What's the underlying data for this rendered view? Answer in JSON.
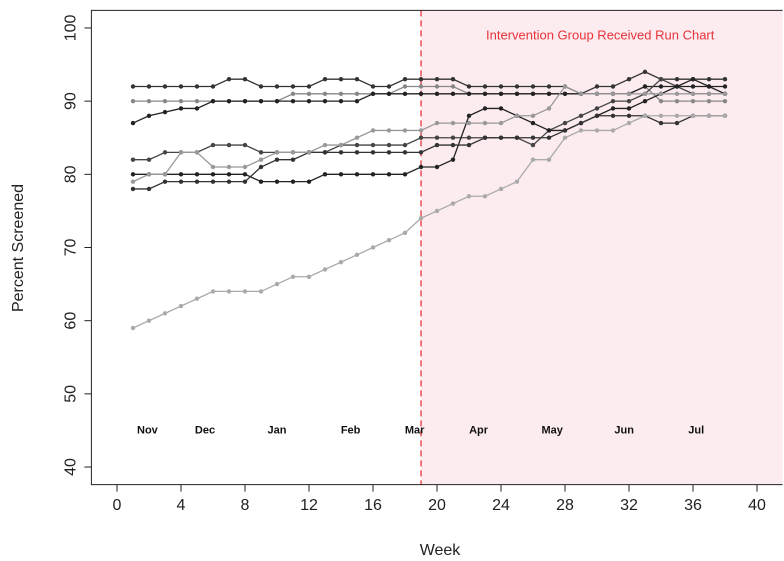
{
  "chart_data": {
    "type": "line",
    "xlabel": "Week",
    "ylabel": "Percent Screened",
    "xlim": [
      -1.6,
      41.6
    ],
    "ylim": [
      37.6,
      102.4
    ],
    "xticks": [
      0,
      4,
      8,
      12,
      16,
      20,
      24,
      28,
      32,
      36,
      40
    ],
    "yticks": [
      40,
      50,
      60,
      70,
      80,
      90,
      100
    ],
    "intervention_week": 19,
    "intervention_color": "#e8333a",
    "shade_color": "#fcecef",
    "annotations": [
      {
        "text": "Intervention Group Received Run Chart",
        "x": 30.2,
        "y": 98.9,
        "color": "#e8333a"
      },
      {
        "text": "Nov",
        "x": 1.9,
        "y": 45,
        "color": "#111111"
      },
      {
        "text": "Dec",
        "x": 5.5,
        "y": 45,
        "color": "#111111"
      },
      {
        "text": "Jan",
        "x": 10,
        "y": 45,
        "color": "#111111"
      },
      {
        "text": "Feb",
        "x": 14.6,
        "y": 45,
        "color": "#111111"
      },
      {
        "text": "Mar",
        "x": 18.6,
        "y": 45,
        "color": "#111111"
      },
      {
        "text": "Apr",
        "x": 22.6,
        "y": 45,
        "color": "#111111"
      },
      {
        "text": "May",
        "x": 27.2,
        "y": 45,
        "color": "#111111"
      },
      {
        "text": "Jun",
        "x": 31.7,
        "y": 45,
        "color": "#111111"
      },
      {
        "text": "Jul",
        "x": 36.2,
        "y": 45,
        "color": "#111111"
      }
    ],
    "x": [
      1,
      2,
      3,
      4,
      5,
      6,
      7,
      8,
      9,
      10,
      11,
      12,
      13,
      14,
      15,
      16,
      17,
      18,
      19,
      20,
      21,
      22,
      23,
      24,
      25,
      26,
      27,
      28,
      29,
      30,
      31,
      32,
      33,
      34,
      35,
      36,
      37,
      38
    ],
    "series": [
      {
        "color": "#333333",
        "values": [
          92,
          92,
          92,
          92,
          92,
          92,
          93,
          93,
          92,
          92,
          92,
          92,
          93,
          93,
          93,
          92,
          92,
          93,
          93,
          93,
          93,
          92,
          92,
          92,
          92,
          92,
          92,
          92,
          91,
          92,
          92,
          93,
          94,
          93,
          93,
          93,
          93,
          93
        ]
      },
      {
        "color": "#888888",
        "values": [
          90,
          90,
          90,
          90,
          90,
          90,
          90,
          90,
          90,
          90,
          91,
          91,
          91,
          91,
          91,
          91,
          91,
          92,
          92,
          92,
          92,
          91,
          91,
          91,
          91,
          91,
          91,
          91,
          91,
          91,
          91,
          91,
          92,
          90,
          90,
          90,
          90,
          90
        ]
      },
      {
        "color": "#222222",
        "values": [
          87,
          88,
          88.5,
          89,
          89,
          90,
          90,
          90,
          90,
          90,
          90,
          90,
          90,
          90,
          90,
          91,
          91,
          91,
          91,
          91,
          91,
          91,
          91,
          91,
          91,
          91,
          91,
          91,
          91,
          91,
          91,
          91,
          92,
          92,
          92,
          92,
          92,
          92
        ]
      },
      {
        "color": "#444444",
        "values": [
          82,
          82,
          83,
          83,
          83,
          84,
          84,
          84,
          83,
          83,
          83,
          83,
          83,
          84,
          84,
          84,
          84,
          84,
          85,
          85,
          85,
          85,
          85,
          85,
          85,
          84,
          86,
          87,
          88,
          89,
          90,
          90,
          91,
          93,
          92,
          91,
          91,
          91
        ]
      },
      {
        "color": "#222222",
        "values": [
          80,
          80,
          80,
          80,
          80,
          80,
          80,
          80,
          79,
          79,
          79,
          79,
          80,
          80,
          80,
          80,
          80,
          80,
          81,
          81,
          82,
          88,
          89,
          89,
          88,
          87,
          86,
          86,
          87,
          88,
          89,
          89,
          90,
          91,
          92,
          93,
          92,
          91
        ]
      },
      {
        "color": "#333333",
        "values": [
          78,
          78,
          79,
          79,
          79,
          79,
          79,
          79,
          81,
          82,
          82,
          83,
          83,
          83,
          83,
          83,
          83,
          83,
          83,
          84,
          84,
          84,
          85,
          85,
          85,
          85,
          85,
          86,
          87,
          88,
          88,
          88,
          88,
          87,
          87,
          88,
          88,
          88
        ]
      },
      {
        "color": "#999999",
        "values": [
          79,
          80,
          80,
          83,
          83,
          81,
          81,
          81,
          82,
          83,
          83,
          83,
          84,
          84,
          85,
          86,
          86,
          86,
          86,
          87,
          87,
          87,
          87,
          87,
          88,
          88,
          89,
          92,
          91,
          91,
          91,
          91,
          91,
          91,
          91,
          91,
          91,
          91
        ]
      },
      {
        "color": "#aaaaaa",
        "values": [
          59,
          60,
          61,
          62,
          63,
          64,
          64,
          64,
          64,
          65,
          66,
          66,
          67,
          68,
          69,
          70,
          71,
          72,
          74,
          75,
          76,
          77,
          77,
          78,
          79,
          82,
          82,
          85,
          86,
          86,
          86,
          87,
          88,
          88,
          88,
          88,
          88,
          88
        ]
      }
    ]
  }
}
